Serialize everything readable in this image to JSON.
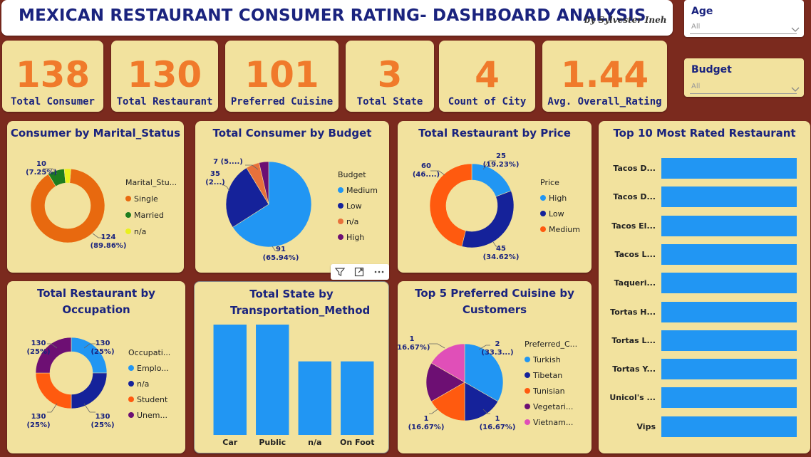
{
  "header": {
    "title": "MEXICAN RESTAURANT CONSUMER  RATING- DASHBOARD ANALYSIS",
    "byline": "by Sylvester Ineh"
  },
  "slicers": {
    "age": {
      "label": "Age",
      "value": "All"
    },
    "budget": {
      "label": "Budget",
      "value": "All"
    }
  },
  "kpis": [
    {
      "value": "138",
      "label": "Total Consumer"
    },
    {
      "value": "130",
      "label": "Total Restaurant"
    },
    {
      "value": "101",
      "label": "Preferred Cuisine"
    },
    {
      "value": "3",
      "label": "Total State"
    },
    {
      "value": "4",
      "label": "Count of City"
    },
    {
      "value": "1.44",
      "label": "Avg. Overall_Rating"
    }
  ],
  "colors": {
    "background": "#7b2a1e",
    "card": "#f2e29e",
    "accent_orange": "#f07a2b",
    "title_navy": "#1a237e",
    "bar_blue": "#2196f3"
  },
  "chart_data": [
    {
      "id": "marital",
      "type": "pie",
      "donut": true,
      "title": "Consumer by Marital_Status",
      "legend_title": "Marital_Stu...",
      "slices": [
        {
          "label": "Single",
          "value": 124,
          "pct": "89.86%",
          "color": "#e8690f"
        },
        {
          "label": "Married",
          "value": 10,
          "pct": "7.25%",
          "color": "#1e7d1e"
        },
        {
          "label": "n/a",
          "value": 4,
          "pct": "",
          "color": "#e9f11d"
        }
      ],
      "data_labels": [
        {
          "line1": "10",
          "line2": "(7.25%)"
        },
        {
          "line1": "124",
          "line2": "(89.86%)"
        }
      ]
    },
    {
      "id": "budget",
      "type": "pie",
      "donut": false,
      "title": "Total Consumer by Budget",
      "legend_title": "Budget",
      "slices": [
        {
          "label": "Medium",
          "value": 91,
          "pct": "65.94%",
          "color": "#2196f3"
        },
        {
          "label": "Low",
          "value": 35,
          "pct": "",
          "color": "#15229a"
        },
        {
          "label": "n/a",
          "value": 7,
          "pct": "",
          "color": "#e8713b"
        },
        {
          "label": "High",
          "value": 5,
          "pct": "",
          "color": "#6d0f73"
        }
      ],
      "data_labels": [
        {
          "line1": "7 (5....)",
          "line2": ""
        },
        {
          "line1": "35",
          "line2": "(2...)"
        },
        {
          "line1": "91",
          "line2": "(65.94%)"
        }
      ]
    },
    {
      "id": "price",
      "type": "pie",
      "donut": true,
      "title": "Total Restaurant by Price",
      "legend_title": "Price",
      "slices": [
        {
          "label": "High",
          "value": 25,
          "pct": "19.23%",
          "color": "#2196f3"
        },
        {
          "label": "Low",
          "value": 45,
          "pct": "34.62%",
          "color": "#15229a"
        },
        {
          "label": "Medium",
          "value": 60,
          "pct": "46....",
          "color": "#ff5a0f"
        }
      ],
      "data_labels": [
        {
          "line1": "25",
          "line2": "(19.23%)"
        },
        {
          "line1": "60",
          "line2": "(46....)"
        },
        {
          "line1": "45",
          "line2": "(34.62%)"
        }
      ]
    },
    {
      "id": "occupation",
      "type": "pie",
      "donut": true,
      "title": "Total Restaurant by Occupation",
      "legend_title": "Occupati...",
      "slices": [
        {
          "label": "Emplo...",
          "value": 130,
          "pct": "25%",
          "color": "#2196f3"
        },
        {
          "label": "n/a",
          "value": 130,
          "pct": "25%",
          "color": "#15229a"
        },
        {
          "label": "Student",
          "value": 130,
          "pct": "25%",
          "color": "#ff5a0f"
        },
        {
          "label": "Unem...",
          "value": 130,
          "pct": "25%",
          "color": "#6d0f73"
        }
      ],
      "data_labels": [
        {
          "line1": "130",
          "line2": "(25%)"
        },
        {
          "line1": "130",
          "line2": "(25%)"
        },
        {
          "line1": "130",
          "line2": "(25%)"
        },
        {
          "line1": "130",
          "line2": "(25%)"
        }
      ]
    },
    {
      "id": "transport",
      "type": "bar",
      "title": "Total State by Transportation_Method",
      "categories": [
        "Car",
        "Public",
        "n/a",
        "On Foot"
      ],
      "values": [
        3,
        3,
        2,
        2
      ],
      "ylim": [
        0,
        3
      ]
    },
    {
      "id": "cuisine",
      "type": "pie",
      "donut": false,
      "title": "Top 5 Preferred Cuisine by Customers",
      "legend_title": "Preferred_C...",
      "slices": [
        {
          "label": "Turkish",
          "value": 2,
          "pct": "33.3...",
          "color": "#2196f3"
        },
        {
          "label": "Tibetan",
          "value": 1,
          "pct": "16.67%",
          "color": "#15229a"
        },
        {
          "label": "Tunisian",
          "value": 1,
          "pct": "16.67%",
          "color": "#ff5a0f"
        },
        {
          "label": "Vegetari...",
          "value": 1,
          "pct": "16.67%",
          "color": "#6d0f73"
        },
        {
          "label": "Vietnam...",
          "value": 1,
          "pct": "16.67%",
          "color": "#e04fb8"
        }
      ],
      "data_labels": [
        {
          "line1": "1",
          "line2": "(16.67%)"
        },
        {
          "line1": "2",
          "line2": "(33.3...)"
        },
        {
          "line1": "1",
          "line2": "(16.67%)"
        },
        {
          "line1": "1",
          "line2": "(16.67%)"
        }
      ]
    },
    {
      "id": "top10",
      "type": "bar",
      "orientation": "horizontal",
      "title": "Top 10 Most Rated Restaurant",
      "categories": [
        "Tacos D...",
        "Tacos D...",
        "Tacos El...",
        "Tacos L...",
        "Taqueri...",
        "Tortas H...",
        "Tortas L...",
        "Tortas Y...",
        "Unicol's ...",
        "Vips"
      ],
      "values": [
        2,
        2,
        2,
        2,
        2,
        2,
        2,
        2,
        2,
        2
      ],
      "xlim": [
        0,
        2
      ]
    }
  ]
}
